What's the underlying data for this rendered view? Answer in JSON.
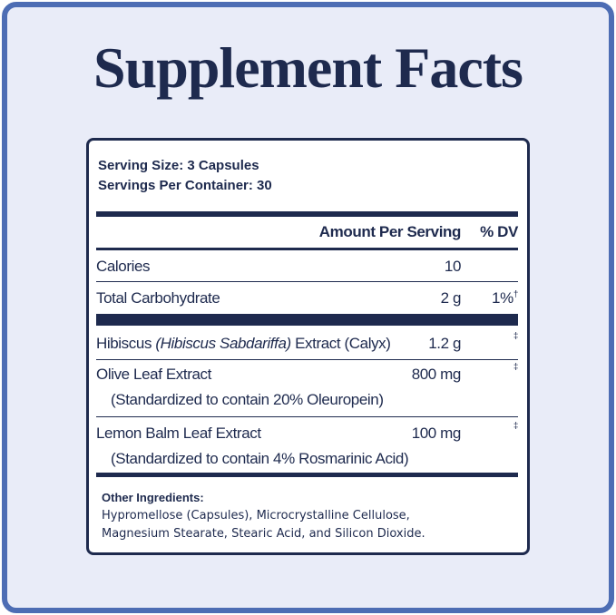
{
  "header": {
    "title": "Supplement Facts"
  },
  "serving": {
    "size": "Serving Size: 3 Capsules",
    "per_container": "Servings Per Container: 30"
  },
  "table": {
    "columns": {
      "amount": "Amount Per Serving",
      "dv": "% DV"
    },
    "rows": [
      {
        "name": "Calories",
        "amount": "10"
      },
      {
        "name": "Total Carbohydrate",
        "amount": "2 g",
        "dv": "1%",
        "dv_note": "†"
      },
      {
        "name_parts": [
          "Hibiscus ",
          "(Hibiscus Sabdariffa)",
          " Extract (Calyx)"
        ],
        "amount": "1.2 g",
        "dv_note": "‡"
      },
      {
        "name": "Olive Leaf Extract",
        "detail": "(Standardized to contain 20% Oleuropein)",
        "amount": "800 mg",
        "dv_note": "‡"
      },
      {
        "name": "Lemon Balm Leaf Extract",
        "detail": "(Standardized to contain 4% Rosmarinic Acid)",
        "amount": "100 mg",
        "dv_note": "‡"
      }
    ]
  },
  "other_ingredients": {
    "label": "Other Ingredients:",
    "lines": [
      "Hypromellose (Capsules), Microcrystalline Cellulose,",
      "Magnesium Stearate, Stearic Acid, and Silicon Dioxide."
    ]
  }
}
